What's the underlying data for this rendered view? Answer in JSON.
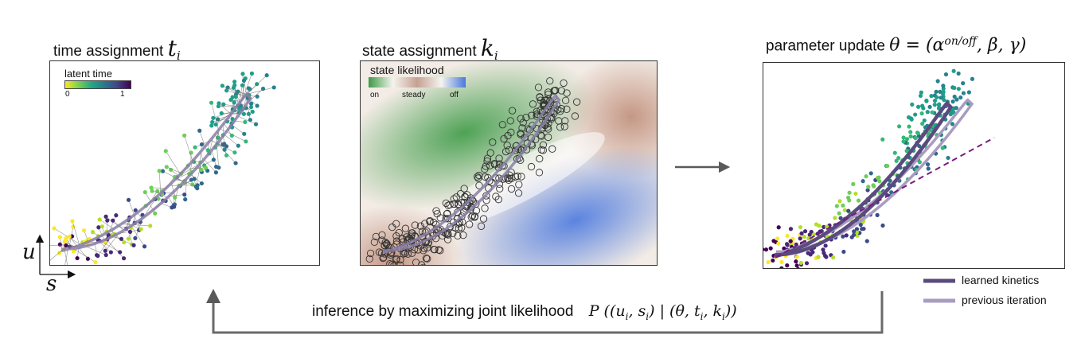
{
  "panels": {
    "time": {
      "title": "time assignment",
      "symbol": "t",
      "sub": "i",
      "colorbar": {
        "label": "latent time",
        "min": "0",
        "max": "1"
      }
    },
    "state": {
      "title": "state assignment",
      "symbol": "k",
      "sub": "i",
      "legend": {
        "title": "state likelihood",
        "on": "on",
        "steady": "steady",
        "off": "off"
      }
    },
    "param": {
      "title": "parameter update",
      "formula": "θ = (α",
      "sup": "on/off",
      "formula_tail": ", β, γ)"
    }
  },
  "axes": {
    "y": "u",
    "x": "s"
  },
  "legend": {
    "learned": "learned kinetics",
    "previous": "previous iteration"
  },
  "loop": {
    "text": "inference by maximizing joint likelihood",
    "formula": "P ((u",
    "f_sub1": "i",
    "f_mid": ", s",
    "f_sub2": "i",
    "f_mid2": ") | (θ, t",
    "f_sub3": "i",
    "f_mid3": ", k",
    "f_sub4": "i",
    "f_tail": "))"
  },
  "colors": {
    "learned": "#5b4a7e",
    "previous": "#a89cc0",
    "on": "#3c9a45",
    "off": "#4a78de",
    "steady": "#b9826c",
    "dashed": "#7a1a7a",
    "arrow": "#555555"
  }
}
